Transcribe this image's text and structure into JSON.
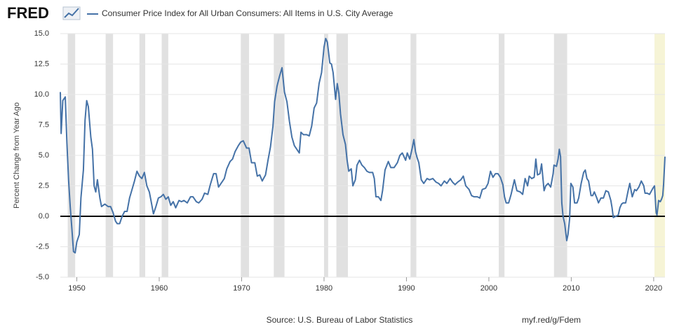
{
  "chart_data": {
    "type": "line",
    "brand": "FRED",
    "ylabel": "Percent Change from Year Ago",
    "source": "Source: U.S. Bureau of Labor Statistics",
    "link": "myf.red/g/Fdem",
    "xlim": [
      1948,
      2021.37
    ],
    "xticks": [
      1950,
      1960,
      1970,
      1980,
      1990,
      2000,
      2010,
      2020
    ],
    "ylim": [
      -5,
      15
    ],
    "yticks": [
      {
        "value": -5,
        "label": "-5.0"
      },
      {
        "value": -2.5,
        "label": "-2.5"
      },
      {
        "value": 0,
        "label": "0.0"
      },
      {
        "value": 2.5,
        "label": "2.5"
      },
      {
        "value": 5,
        "label": "5.0"
      },
      {
        "value": 7.5,
        "label": "7.5"
      },
      {
        "value": 10,
        "label": "10.0"
      },
      {
        "value": 12.5,
        "label": "12.5"
      },
      {
        "value": 15,
        "label": "15.0"
      }
    ],
    "grid": true,
    "recession_color": "#e1e1e1",
    "recessions": [
      [
        1948.9,
        1949.8
      ],
      [
        1953.5,
        1954.4
      ],
      [
        1957.6,
        1958.3
      ],
      [
        1960.3,
        1961.1
      ],
      [
        1969.9,
        1970.9
      ],
      [
        1973.9,
        1975.2
      ],
      [
        1980.0,
        1980.5
      ],
      [
        1981.5,
        1982.9
      ],
      [
        1990.5,
        1991.2
      ],
      [
        2001.2,
        2001.9
      ],
      [
        2007.9,
        2009.5
      ]
    ],
    "preliminary_color": "#f6f4d6",
    "preliminary": [
      2020.1,
      2021.37
    ],
    "x": [
      1948.0,
      1948.1,
      1948.3,
      1948.6,
      1948.8,
      1949.0,
      1949.2,
      1949.4,
      1949.6,
      1949.8,
      1950.0,
      1950.3,
      1950.5,
      1950.8,
      1951.0,
      1951.2,
      1951.4,
      1951.7,
      1951.9,
      1952.1,
      1952.3,
      1952.5,
      1952.8,
      1953.0,
      1953.4,
      1953.8,
      1954.1,
      1954.4,
      1954.7,
      1954.9,
      1955.2,
      1955.5,
      1955.8,
      1956.1,
      1956.4,
      1956.7,
      1957.0,
      1957.3,
      1957.6,
      1957.9,
      1958.2,
      1958.5,
      1958.8,
      1959.0,
      1959.3,
      1959.6,
      1959.9,
      1960.2,
      1960.5,
      1960.8,
      1961.1,
      1961.4,
      1961.7,
      1962.0,
      1962.4,
      1962.7,
      1963.0,
      1963.4,
      1963.8,
      1964.1,
      1964.5,
      1964.8,
      1965.2,
      1965.5,
      1965.9,
      1966.2,
      1966.6,
      1966.9,
      1967.2,
      1967.6,
      1967.9,
      1968.2,
      1968.6,
      1968.9,
      1969.2,
      1969.6,
      1969.9,
      1970.2,
      1970.6,
      1970.9,
      1971.2,
      1971.6,
      1971.9,
      1972.2,
      1972.5,
      1972.9,
      1973.2,
      1973.5,
      1973.8,
      1974.0,
      1974.3,
      1974.6,
      1974.9,
      1975.2,
      1975.5,
      1975.8,
      1976.1,
      1976.4,
      1976.7,
      1977.0,
      1977.2,
      1977.5,
      1977.9,
      1978.2,
      1978.5,
      1978.8,
      1979.1,
      1979.4,
      1979.7,
      1980.0,
      1980.2,
      1980.4,
      1980.7,
      1980.9,
      1981.1,
      1981.4,
      1981.6,
      1981.8,
      1982.0,
      1982.3,
      1982.6,
      1982.8,
      1983.0,
      1983.3,
      1983.5,
      1983.8,
      1984.0,
      1984.3,
      1984.6,
      1984.9,
      1985.2,
      1985.5,
      1985.9,
      1986.1,
      1986.3,
      1986.6,
      1986.9,
      1987.1,
      1987.4,
      1987.8,
      1988.1,
      1988.5,
      1988.9,
      1989.2,
      1989.5,
      1989.9,
      1990.1,
      1990.4,
      1990.7,
      1990.9,
      1991.1,
      1991.3,
      1991.5,
      1991.8,
      1992.1,
      1992.5,
      1992.8,
      1993.2,
      1993.6,
      1993.9,
      1994.2,
      1994.6,
      1994.9,
      1995.3,
      1995.6,
      1995.9,
      1996.2,
      1996.6,
      1996.9,
      1997.2,
      1997.6,
      1997.9,
      1998.2,
      1998.6,
      1998.9,
      1999.2,
      1999.6,
      1999.9,
      2000.2,
      2000.5,
      2000.8,
      2001.1,
      2001.4,
      2001.7,
      2001.9,
      2002.1,
      2002.4,
      2002.7,
      2002.9,
      2003.1,
      2003.4,
      2003.8,
      2004.1,
      2004.4,
      2004.7,
      2004.9,
      2005.2,
      2005.5,
      2005.7,
      2005.9,
      2006.2,
      2006.4,
      2006.7,
      2006.9,
      2007.2,
      2007.5,
      2007.8,
      2007.9,
      2008.2,
      2008.4,
      2008.55,
      2008.7,
      2008.85,
      2009.0,
      2009.2,
      2009.45,
      2009.6,
      2009.8,
      2009.95,
      2010.2,
      2010.4,
      2010.7,
      2010.9,
      2011.2,
      2011.5,
      2011.7,
      2011.9,
      2012.1,
      2012.4,
      2012.6,
      2012.8,
      2013.1,
      2013.3,
      2013.6,
      2013.9,
      2014.2,
      2014.5,
      2014.8,
      2014.95,
      2015.1,
      2015.4,
      2015.7,
      2015.9,
      2016.1,
      2016.3,
      2016.6,
      2016.9,
      2017.1,
      2017.4,
      2017.7,
      2017.9,
      2018.2,
      2018.5,
      2018.8,
      2018.95,
      2019.2,
      2019.5,
      2019.9,
      2020.1,
      2020.3,
      2020.4,
      2020.6,
      2020.8,
      2020.95,
      2021.1,
      2021.2,
      2021.37
    ],
    "series": [
      {
        "name": "Consumer Price Index for All Urban Consumers: All Items in U.S. City Average",
        "color": "#4572a7",
        "values": [
          10.2,
          6.8,
          9.5,
          9.8,
          6.0,
          3.0,
          0.8,
          -1.0,
          -2.9,
          -3.0,
          -2.1,
          -1.5,
          1.5,
          3.8,
          7.9,
          9.5,
          9.0,
          6.5,
          5.5,
          2.5,
          2.0,
          3.0,
          1.5,
          0.8,
          1.0,
          0.8,
          0.8,
          0.3,
          -0.4,
          -0.6,
          -0.6,
          0.0,
          0.4,
          0.4,
          1.5,
          2.2,
          2.9,
          3.7,
          3.3,
          3.1,
          3.6,
          2.5,
          2.0,
          1.3,
          0.2,
          0.8,
          1.5,
          1.6,
          1.8,
          1.4,
          1.6,
          0.9,
          1.2,
          0.7,
          1.3,
          1.2,
          1.3,
          1.1,
          1.6,
          1.6,
          1.2,
          1.1,
          1.4,
          1.9,
          1.8,
          2.6,
          3.5,
          3.5,
          2.4,
          2.8,
          3.1,
          3.9,
          4.5,
          4.7,
          5.3,
          5.8,
          6.1,
          6.2,
          5.6,
          5.6,
          4.4,
          4.4,
          3.3,
          3.4,
          2.9,
          3.4,
          4.6,
          5.7,
          7.4,
          9.4,
          10.7,
          11.5,
          12.2,
          10.2,
          9.4,
          7.8,
          6.5,
          5.8,
          5.5,
          5.2,
          6.9,
          6.7,
          6.7,
          6.6,
          7.4,
          8.9,
          9.3,
          10.9,
          11.8,
          13.9,
          14.6,
          14.3,
          12.6,
          12.5,
          11.8,
          9.6,
          10.9,
          10.1,
          8.4,
          6.7,
          5.9,
          4.6,
          3.7,
          3.9,
          2.5,
          3.0,
          4.2,
          4.6,
          4.2,
          4.0,
          3.7,
          3.6,
          3.6,
          3.1,
          1.6,
          1.6,
          1.3,
          2.1,
          3.8,
          4.5,
          4.0,
          4.0,
          4.4,
          5.0,
          5.2,
          4.6,
          5.2,
          4.7,
          5.6,
          6.3,
          5.3,
          4.8,
          4.4,
          3.0,
          2.7,
          3.1,
          3.0,
          3.1,
          2.8,
          2.7,
          2.5,
          2.9,
          2.7,
          3.1,
          2.8,
          2.6,
          2.8,
          3.0,
          3.3,
          2.5,
          2.2,
          1.7,
          1.6,
          1.6,
          1.5,
          2.2,
          2.3,
          2.7,
          3.7,
          3.2,
          3.5,
          3.5,
          3.2,
          2.6,
          1.6,
          1.1,
          1.1,
          1.8,
          2.4,
          3.0,
          2.1,
          2.0,
          1.8,
          3.1,
          2.5,
          3.3,
          3.1,
          3.2,
          4.7,
          3.4,
          3.5,
          4.3,
          2.1,
          2.5,
          2.7,
          2.4,
          3.5,
          4.2,
          4.1,
          4.7,
          5.5,
          4.9,
          1.1,
          0.0,
          -0.6,
          -2.0,
          -1.5,
          -0.2,
          2.7,
          2.4,
          1.1,
          1.1,
          1.5,
          2.7,
          3.6,
          3.8,
          3.1,
          2.9,
          1.7,
          1.7,
          2.0,
          1.5,
          1.1,
          1.5,
          1.5,
          2.1,
          2.0,
          1.3,
          0.7,
          -0.1,
          0.0,
          0.1,
          0.7,
          1.0,
          1.1,
          1.1,
          2.1,
          2.7,
          1.6,
          2.2,
          2.1,
          2.4,
          2.9,
          2.5,
          1.9,
          1.9,
          1.8,
          2.3,
          2.5,
          0.3,
          0.1,
          1.3,
          1.2,
          1.4,
          1.7,
          2.6,
          4.9
        ]
      }
    ]
  }
}
